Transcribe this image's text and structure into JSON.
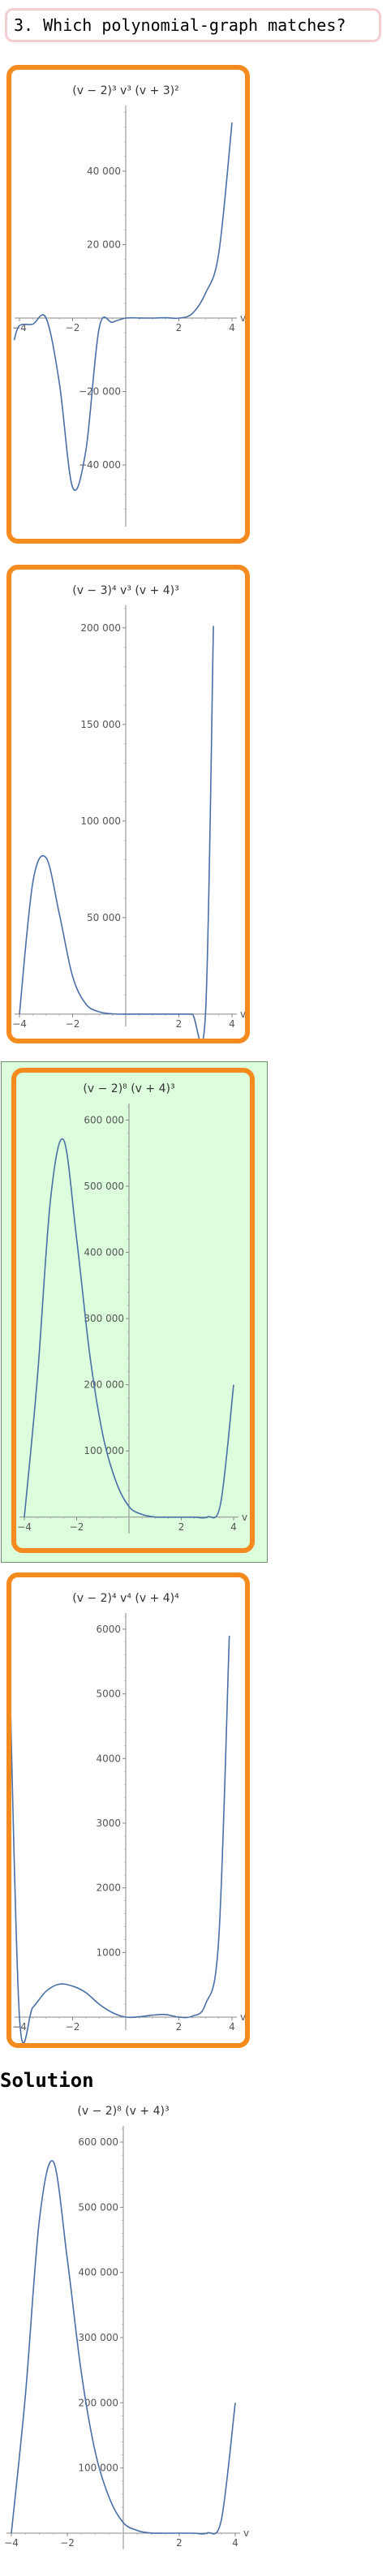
{
  "question": {
    "text": "3. Which polynomial-graph matches?"
  },
  "solution": {
    "label": "Solution"
  },
  "colors": {
    "option_border": "#f58b1f",
    "correct_bg": "#ddfedd",
    "curve": "#4a6fa5",
    "question_border": "#f3cdd2"
  },
  "chart_data": [
    {
      "type": "line",
      "title": "(v − 2)³ v³ (v + 3)²",
      "xlabel": "v",
      "ylabel": "",
      "xlim": [
        -4,
        4
      ],
      "ylim": [
        -55000,
        57000
      ],
      "x_ticks": [
        -4,
        -2,
        2,
        4
      ],
      "y_ticks": [
        -40000,
        -20000,
        20000,
        40000
      ],
      "x_tick_labels": [
        "−4",
        "−2",
        "2",
        "4"
      ],
      "y_tick_labels": [
        "−40 000",
        "−20 000",
        "20 000",
        "40 000"
      ],
      "series": [
        {
          "x": [
            -4.2,
            -4,
            -3.5,
            -3,
            -2.5,
            -2,
            -1.5,
            -1,
            -0.5,
            0,
            0.5,
            1,
            1.5,
            2,
            2.5,
            3,
            3.5,
            4
          ],
          "y": [
            -6010,
            -2048,
            -1646,
            0,
            -17578,
            -46080,
            -35978,
            -2673,
            -1123,
            0,
            27,
            16,
            98,
            0,
            1212,
            6750,
            17556,
            53248
          ]
        }
      ]
    },
    {
      "type": "line",
      "title": "(v − 3)⁴ v³ (v + 4)³",
      "xlabel": "v",
      "ylabel": "",
      "xlim": [
        -4,
        4
      ],
      "ylim": [
        -3000,
        210000
      ],
      "x_ticks": [
        -4,
        -2,
        2,
        4
      ],
      "y_ticks": [
        50000,
        100000,
        150000,
        200000
      ],
      "x_tick_labels": [
        "−4",
        "−2",
        "2",
        "4"
      ],
      "y_tick_labels": [
        "50 000",
        "100 000",
        "150 000",
        "200 000"
      ],
      "series": [
        {
          "x": [
            -4,
            -3.5,
            -3,
            -2.5,
            -2,
            -1.5,
            -1,
            -0.5,
            0,
            0.5,
            1,
            1.5,
            2,
            2.5,
            3,
            3.3
          ],
          "y": [
            0,
            68024,
            81000,
            51932,
            19530,
            5233,
            1190,
            146,
            0,
            15,
            6,
            6,
            5,
            1,
            0,
            201000
          ]
        }
      ]
    },
    {
      "type": "line",
      "title": "(v − 2)⁸ (v + 4)³",
      "xlabel": "v",
      "ylabel": "",
      "xlim": [
        -4,
        4
      ],
      "ylim": [
        -15000,
        620000
      ],
      "x_ticks": [
        -4,
        -2,
        2,
        4
      ],
      "y_ticks": [
        100000,
        200000,
        300000,
        400000,
        500000,
        600000
      ],
      "x_tick_labels": [
        "−4",
        "−2",
        "2",
        "4"
      ],
      "y_tick_labels": [
        "100 000",
        "200 000",
        "300 000",
        "400 000",
        "500 000",
        "600 000"
      ],
      "series": [
        {
          "x": [
            -4,
            -3.5,
            -3,
            -2.5,
            -2,
            -1.5,
            -1,
            -0.5,
            0,
            0.5,
            1,
            1.5,
            2,
            2.5,
            3,
            3.5,
            4
          ],
          "y": [
            0,
            211000,
            480000,
            570000,
            420000,
            246000,
            124000,
            54000,
            16000,
            4100,
            125,
            0,
            0,
            0,
            343,
            20000,
            200000
          ]
        }
      ]
    },
    {
      "type": "line",
      "title": "(v − 2)⁴ v⁴ (v + 4)⁴",
      "xlabel": "v",
      "ylabel": "",
      "xlim": [
        -4,
        4
      ],
      "ylim": [
        -100,
        6200
      ],
      "x_ticks": [
        -4,
        -2,
        2,
        4
      ],
      "y_ticks": [
        1000,
        2000,
        3000,
        4000,
        5000,
        6000
      ],
      "x_tick_labels": [
        "−4",
        "−2",
        "2",
        "4"
      ],
      "y_tick_labels": [
        "1000",
        "2000",
        "3000",
        "4000",
        "5000",
        "6000"
      ],
      "series": [
        {
          "x": [
            -4.4,
            -4,
            -3.5,
            -3,
            -2.5,
            -2,
            -1.5,
            -1,
            -0.5,
            0,
            0.5,
            1,
            1.5,
            2,
            2.5,
            3,
            3.5,
            3.9
          ],
          "y": [
            5900,
            0,
            150,
            400,
            510,
            480,
            380,
            200,
            70,
            0,
            5,
            30,
            40,
            0,
            15,
            200,
            1200,
            5900
          ]
        }
      ]
    },
    {
      "type": "line",
      "title": "(v − 2)⁸ (v + 4)³",
      "xlabel": "v",
      "ylabel": "",
      "xlim": [
        -4,
        4
      ],
      "ylim": [
        -15000,
        620000
      ],
      "x_ticks": [
        -4,
        -2,
        2,
        4
      ],
      "y_ticks": [
        100000,
        200000,
        300000,
        400000,
        500000,
        600000
      ],
      "x_tick_labels": [
        "−4",
        "−2",
        "2",
        "4"
      ],
      "y_tick_labels": [
        "100 000",
        "200 000",
        "300 000",
        "400 000",
        "500 000",
        "600 000"
      ],
      "series": [
        {
          "x": [
            -4,
            -3.5,
            -3,
            -2.5,
            -2,
            -1.5,
            -1,
            -0.5,
            0,
            0.5,
            1,
            1.5,
            2,
            2.5,
            3,
            3.5,
            4
          ],
          "y": [
            0,
            211000,
            480000,
            570000,
            420000,
            246000,
            124000,
            54000,
            16000,
            4100,
            125,
            0,
            0,
            0,
            343,
            20000,
            200000
          ]
        }
      ]
    }
  ]
}
